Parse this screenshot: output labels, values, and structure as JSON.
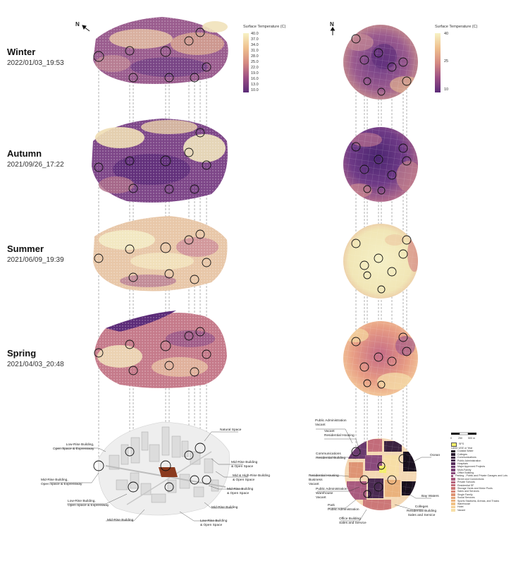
{
  "seasons": [
    {
      "name": "Winter",
      "date": "2022/01/03_19:53"
    },
    {
      "name": "Autumn",
      "date": "2021/09/26_17:22"
    },
    {
      "name": "Summer",
      "date": "2021/06/09_19:39"
    },
    {
      "name": "Spring",
      "date": "2021/04/03_20:48"
    }
  ],
  "north_label": "N",
  "legend_left": {
    "title": "Surface Temperature (C)",
    "ticks": [
      "40.0",
      "37.0",
      "34.0",
      "31.0",
      "28.0",
      "25.0",
      "22.0",
      "19.0",
      "16.0",
      "13.0",
      "10.0"
    ]
  },
  "legend_right": {
    "title": "Surface Temperature (C)",
    "ticks": [
      "40",
      "25",
      "10"
    ]
  },
  "left_callouts": [
    "Natural Space",
    "Low-Rise Building,\nOpen Space & Expressway",
    "Mid-Rise Building\n& Open Space",
    "Mid & High-Rise Building\n& Open Space",
    "Mid-Rise Building,\nOpen Space & Expressway",
    "Mid-Rise Building\n& Open Space",
    "Low-Rise Building,\nOpen Space & Expressway",
    "Mid-Rise Building",
    "Mid-Rise Building",
    "Low-Rise Building\n& Open Space"
  ],
  "right_callouts": [
    "Public Administration\nVacant",
    "Vacant\nResidential Housing",
    "Communications\nResidential Building",
    "Ocean",
    "Residential Housing\nBusiness\nVacant",
    "Public Administration\nWarehouse\nVacant",
    "Bay Waters",
    "Park\nPublic Administration",
    "Colleges\nResidential Building\nSales and Service",
    "Office Building\nSales and Service"
  ],
  "scale": {
    "ticks": [
      "0",
      "250",
      "500 m"
    ]
  },
  "landuse_legend": {
    "swatch_label": "SFS",
    "title": "LAND USE or Year",
    "items": [
      {
        "label": "Coastal Water",
        "color": "#1a1020"
      },
      {
        "label": "Colleges",
        "color": "#2a1a30"
      },
      {
        "label": "Communications",
        "color": "#3b2240"
      },
      {
        "label": "Public Administration",
        "color": "#4a2a52"
      },
      {
        "label": "Hospitals",
        "color": "#5a3060"
      },
      {
        "label": "Major Approved Projects",
        "color": "#6a3a6e"
      },
      {
        "label": "Multi-Family",
        "color": "#7a4276"
      },
      {
        "label": "Office Building",
        "color": "#8a4a7c"
      },
      {
        "label": "Parking - Public and Private Garages and Lots",
        "color": "#9a527e"
      },
      {
        "label": "Street and Connections",
        "color": "#a85a7e"
      },
      {
        "label": "Private Schools",
        "color": "#b6627c"
      },
      {
        "label": "Residential SF",
        "color": "#c26c7a"
      },
      {
        "label": "Storage Yards and Motor Pools",
        "color": "#cc7878"
      },
      {
        "label": "Sales and Services",
        "color": "#d68676"
      },
      {
        "label": "Single Family",
        "color": "#de9474"
      },
      {
        "label": "Social Services",
        "color": "#e4a276"
      },
      {
        "label": "Sports Stadiums, Arenas, and Tracks",
        "color": "#eab27c"
      },
      {
        "label": "Warehouse",
        "color": "#f0c286"
      },
      {
        "label": "Hotel",
        "color": "#f4d094"
      },
      {
        "label": "Vacant",
        "color": "#f7dea6"
      }
    ]
  }
}
